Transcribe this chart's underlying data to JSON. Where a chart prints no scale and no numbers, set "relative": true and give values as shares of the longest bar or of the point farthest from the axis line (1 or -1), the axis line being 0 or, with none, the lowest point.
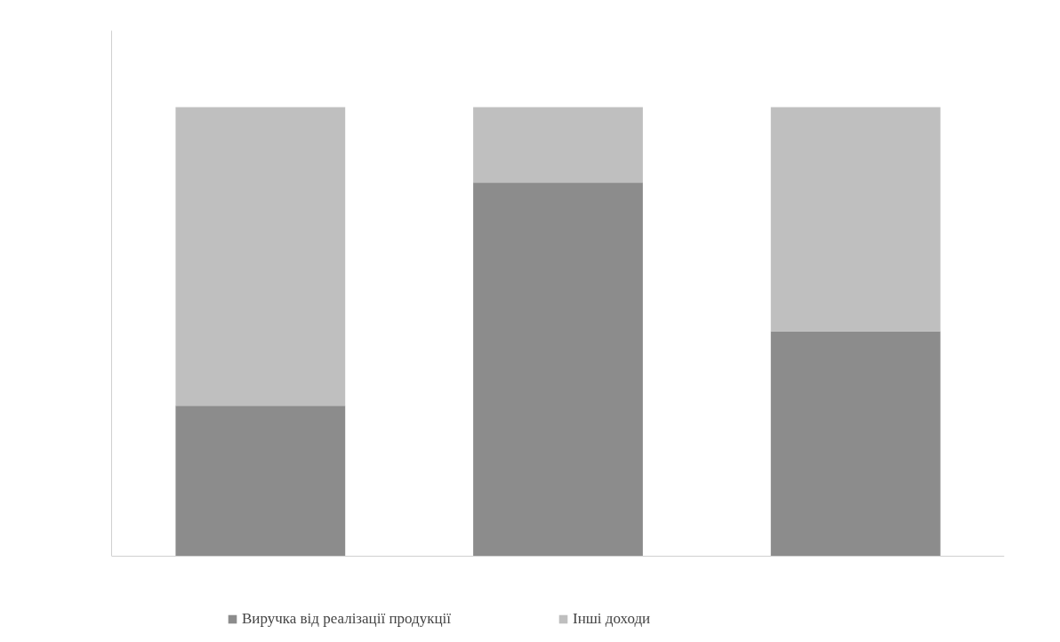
{
  "chart_data": {
    "type": "bar",
    "stacked": true,
    "relative": true,
    "categories": [
      null,
      null,
      null
    ],
    "series": [
      {
        "name": "Виручка від реалізації продукції",
        "color": "#8c8c8c",
        "values": [
          0.335,
          0.832,
          0.501
        ]
      },
      {
        "name": "Інші доходи",
        "color": "#bfbfbf",
        "values": [
          0.665,
          0.168,
          0.499
        ]
      }
    ],
    "legend": "bottom",
    "grid": false
  }
}
